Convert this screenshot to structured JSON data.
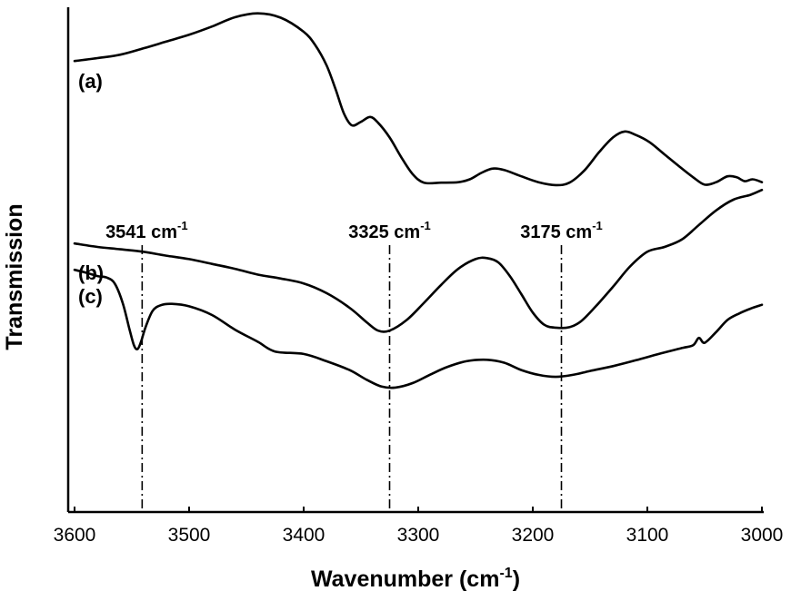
{
  "chart_data": {
    "type": "line",
    "title": "",
    "xlabel": "Wavenumber (cm",
    "xlabel_sup": "-1",
    "xlabel_suffix": ")",
    "ylabel": "Transmission",
    "xlim": [
      3600,
      3000
    ],
    "x_reversed": true,
    "y_ticks_shown": false,
    "ylim": [
      0,
      1
    ],
    "grid": false,
    "x_ticks": [
      3600,
      3500,
      3400,
      3300,
      3200,
      3100,
      3000
    ],
    "series": [
      {
        "name": "(a)",
        "points": [
          [
            3600,
            0.897
          ],
          [
            3580,
            0.903
          ],
          [
            3560,
            0.91
          ],
          [
            3540,
            0.923
          ],
          [
            3520,
            0.937
          ],
          [
            3500,
            0.951
          ],
          [
            3480,
            0.968
          ],
          [
            3460,
            0.987
          ],
          [
            3440,
            0.995
          ],
          [
            3420,
            0.986
          ],
          [
            3400,
            0.957
          ],
          [
            3390,
            0.93
          ],
          [
            3380,
            0.888
          ],
          [
            3372,
            0.838
          ],
          [
            3365,
            0.79
          ],
          [
            3358,
            0.765
          ],
          [
            3350,
            0.772
          ],
          [
            3342,
            0.782
          ],
          [
            3335,
            0.77
          ],
          [
            3325,
            0.74
          ],
          [
            3315,
            0.7
          ],
          [
            3305,
            0.665
          ],
          [
            3295,
            0.647
          ],
          [
            3280,
            0.647
          ],
          [
            3265,
            0.648
          ],
          [
            3255,
            0.654
          ],
          [
            3245,
            0.667
          ],
          [
            3235,
            0.676
          ],
          [
            3225,
            0.673
          ],
          [
            3210,
            0.66
          ],
          [
            3195,
            0.648
          ],
          [
            3180,
            0.642
          ],
          [
            3168,
            0.647
          ],
          [
            3155,
            0.672
          ],
          [
            3142,
            0.71
          ],
          [
            3130,
            0.74
          ],
          [
            3120,
            0.752
          ],
          [
            3110,
            0.745
          ],
          [
            3098,
            0.73
          ],
          [
            3085,
            0.705
          ],
          [
            3072,
            0.68
          ],
          [
            3060,
            0.658
          ],
          [
            3050,
            0.643
          ],
          [
            3040,
            0.648
          ],
          [
            3030,
            0.66
          ],
          [
            3022,
            0.658
          ],
          [
            3015,
            0.65
          ],
          [
            3008,
            0.654
          ],
          [
            3000,
            0.648
          ]
        ]
      },
      {
        "name": "(b)",
        "points": [
          [
            3600,
            0.522
          ],
          [
            3580,
            0.515
          ],
          [
            3560,
            0.51
          ],
          [
            3540,
            0.505
          ],
          [
            3520,
            0.497
          ],
          [
            3500,
            0.49
          ],
          [
            3480,
            0.48
          ],
          [
            3460,
            0.47
          ],
          [
            3440,
            0.458
          ],
          [
            3420,
            0.45
          ],
          [
            3400,
            0.44
          ],
          [
            3380,
            0.42
          ],
          [
            3360,
            0.39
          ],
          [
            3345,
            0.36
          ],
          [
            3335,
            0.343
          ],
          [
            3325,
            0.343
          ],
          [
            3310,
            0.365
          ],
          [
            3295,
            0.4
          ],
          [
            3280,
            0.437
          ],
          [
            3265,
            0.47
          ],
          [
            3250,
            0.49
          ],
          [
            3240,
            0.492
          ],
          [
            3230,
            0.483
          ],
          [
            3220,
            0.455
          ],
          [
            3210,
            0.418
          ],
          [
            3200,
            0.38
          ],
          [
            3190,
            0.355
          ],
          [
            3180,
            0.349
          ],
          [
            3168,
            0.35
          ],
          [
            3158,
            0.362
          ],
          [
            3145,
            0.393
          ],
          [
            3130,
            0.433
          ],
          [
            3115,
            0.475
          ],
          [
            3100,
            0.505
          ],
          [
            3085,
            0.515
          ],
          [
            3070,
            0.53
          ],
          [
            3055,
            0.56
          ],
          [
            3040,
            0.59
          ],
          [
            3025,
            0.612
          ],
          [
            3010,
            0.622
          ],
          [
            3000,
            0.632
          ]
        ]
      },
      {
        "name": "(c)",
        "points": [
          [
            3600,
            0.468
          ],
          [
            3590,
            0.462
          ],
          [
            3580,
            0.455
          ],
          [
            3572,
            0.452
          ],
          [
            3565,
            0.44
          ],
          [
            3558,
            0.4
          ],
          [
            3552,
            0.345
          ],
          [
            3548,
            0.312
          ],
          [
            3545,
            0.305
          ],
          [
            3542,
            0.32
          ],
          [
            3538,
            0.35
          ],
          [
            3532,
            0.383
          ],
          [
            3525,
            0.395
          ],
          [
            3515,
            0.398
          ],
          [
            3500,
            0.393
          ],
          [
            3480,
            0.375
          ],
          [
            3460,
            0.345
          ],
          [
            3440,
            0.32
          ],
          [
            3425,
            0.3
          ],
          [
            3400,
            0.295
          ],
          [
            3380,
            0.28
          ],
          [
            3360,
            0.262
          ],
          [
            3345,
            0.242
          ],
          [
            3332,
            0.228
          ],
          [
            3320,
            0.226
          ],
          [
            3305,
            0.235
          ],
          [
            3290,
            0.252
          ],
          [
            3275,
            0.268
          ],
          [
            3258,
            0.28
          ],
          [
            3240,
            0.283
          ],
          [
            3225,
            0.277
          ],
          [
            3210,
            0.262
          ],
          [
            3195,
            0.252
          ],
          [
            3180,
            0.248
          ],
          [
            3165,
            0.252
          ],
          [
            3150,
            0.26
          ],
          [
            3130,
            0.27
          ],
          [
            3110,
            0.282
          ],
          [
            3090,
            0.295
          ],
          [
            3070,
            0.307
          ],
          [
            3060,
            0.313
          ],
          [
            3055,
            0.328
          ],
          [
            3050,
            0.318
          ],
          [
            3040,
            0.34
          ],
          [
            3030,
            0.365
          ],
          [
            3020,
            0.378
          ],
          [
            3010,
            0.388
          ],
          [
            3000,
            0.396
          ]
        ]
      }
    ],
    "annotations": [
      {
        "x": 3541,
        "label": "3541 cm",
        "sup": "-1"
      },
      {
        "x": 3325,
        "label": "3325 cm",
        "sup": "-1"
      },
      {
        "x": 3175,
        "label": "3175 cm",
        "sup": "-1"
      }
    ]
  }
}
